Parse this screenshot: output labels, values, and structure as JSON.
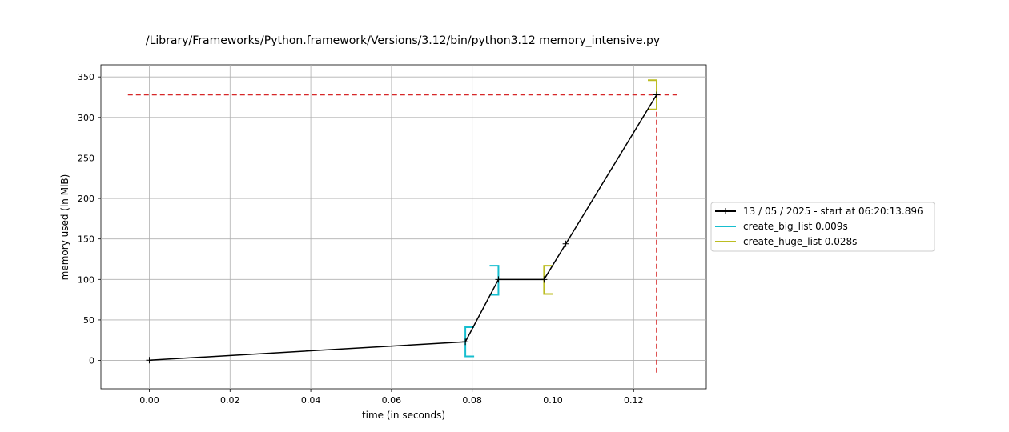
{
  "chart_data": {
    "type": "line",
    "title": "/Library/Frameworks/Python.framework/Versions/3.12/bin/python3.12 memory_intensive.py",
    "xlabel": "time (in seconds)",
    "ylabel": "memory used (in MiB)",
    "xlim": [
      -0.012,
      0.138
    ],
    "ylim": [
      -35,
      365
    ],
    "xticks": [
      "0.00",
      "0.02",
      "0.04",
      "0.06",
      "0.08",
      "0.10",
      "0.12"
    ],
    "xtick_values": [
      0.0,
      0.02,
      0.04,
      0.06,
      0.08,
      0.1,
      0.12
    ],
    "yticks": [
      "0",
      "50",
      "100",
      "150",
      "200",
      "250",
      "300",
      "350"
    ],
    "ytick_values": [
      0,
      50,
      100,
      150,
      200,
      250,
      300,
      350
    ],
    "grid": true,
    "legend_position": "right",
    "series": [
      {
        "name": "13 / 05 / 2025 - start at 06:20:13.896",
        "color": "#000000",
        "marker": "+",
        "points": [
          [
            0.0,
            0.3
          ],
          [
            0.0783,
            23
          ],
          [
            0.0865,
            100
          ],
          [
            0.0978,
            100
          ],
          [
            0.1032,
            144
          ],
          [
            0.1257,
            328
          ]
        ]
      }
    ],
    "brackets": [
      {
        "name": "create_big_list 0.009s",
        "color": "#17becf",
        "start": {
          "t": 0.0783,
          "ymin": 5,
          "ymax": 41
        },
        "end": {
          "t": 0.0865,
          "ymin": 81,
          "ymax": 117
        }
      },
      {
        "name": "create_huge_list 0.028s",
        "color": "#bcbd22",
        "start": {
          "t": 0.0978,
          "ymin": 82,
          "ymax": 117
        },
        "end": {
          "t": 0.1257,
          "ymin": 310,
          "ymax": 346
        }
      }
    ],
    "peak": {
      "color": "#d62728",
      "t": 0.1257,
      "mem": 328,
      "hline_x": [
        -0.0053,
        0.131
      ],
      "vline_y": [
        -15,
        350
      ]
    }
  }
}
